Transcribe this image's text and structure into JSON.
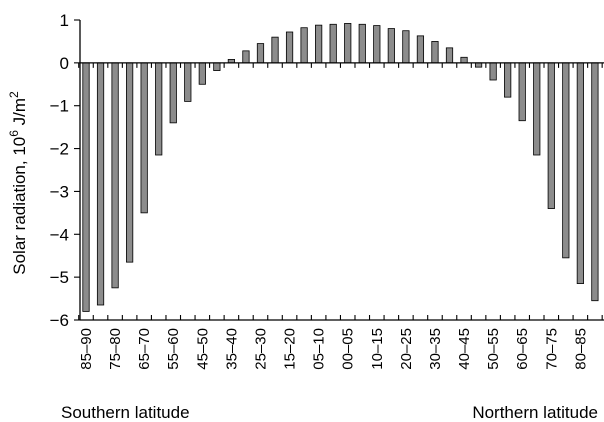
{
  "chart_data": {
    "type": "bar",
    "ylabel": "Solar radiation, 10",
    "ylabel_exp": "6",
    "ylabel_unit": " J/m",
    "ylabel_unit_exp": "2",
    "ylim": [
      -6,
      1
    ],
    "yticks": [
      "1",
      "0",
      "−1",
      "−2",
      "−3",
      "−4",
      "−5",
      "−6"
    ],
    "ytick_values": [
      1,
      0,
      -1,
      -2,
      -3,
      -4,
      -5,
      -6
    ],
    "x_region_labels": {
      "left": "Southern latitude",
      "right": "Northern latitude"
    },
    "grid": false,
    "categories": [
      "85–90",
      "80–85",
      "75–80",
      "70–75",
      "65–70",
      "60–65",
      "55–60",
      "50–55",
      "45–50",
      "40–45",
      "35–40",
      "30–35",
      "25–30",
      "20–25",
      "15–20",
      "10–15",
      "05–10",
      "00–05",
      "00–05",
      "05–10",
      "10–15",
      "15–20",
      "20–25",
      "25–30",
      "30–35",
      "35–40",
      "40–45",
      "45–50",
      "50–55",
      "55–60",
      "60–65",
      "65–70",
      "70–75",
      "75–80",
      "80–85",
      "85–90"
    ],
    "labeled_category_indices": [
      0,
      2,
      4,
      6,
      8,
      10,
      12,
      14,
      16,
      18,
      20,
      22,
      24,
      26,
      28,
      30,
      32,
      34
    ],
    "values": [
      -5.8,
      -5.65,
      -5.25,
      -4.65,
      -3.5,
      -2.15,
      -1.4,
      -0.9,
      -0.5,
      -0.18,
      0.08,
      0.28,
      0.45,
      0.6,
      0.72,
      0.82,
      0.88,
      0.9,
      0.92,
      0.9,
      0.87,
      0.8,
      0.75,
      0.63,
      0.5,
      0.35,
      0.13,
      -0.1,
      -0.4,
      -0.8,
      -1.35,
      -2.15,
      -3.4,
      -4.55,
      -5.15,
      -5.55
    ]
  },
  "extra_value": -5.65
}
